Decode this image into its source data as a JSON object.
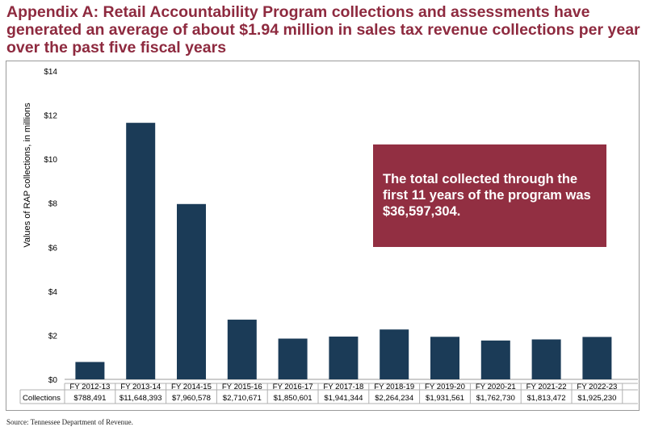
{
  "title": "Appendix A: Retail Accountability Program collections and assessments have generated an average of about $1.94 million in sales tax revenue collections per year over the past five fiscal years",
  "callout": "The total collected through the first 11 years of the program was $36,597,304.",
  "source": "Source: Tennessee Department of Revenue.",
  "colors": {
    "title": "#8e2a3f",
    "bar": "#1b3b57",
    "callout": "#922f42"
  },
  "chart_data": {
    "type": "bar",
    "categories": [
      "FY 2012-13",
      "FY 2013-14",
      "FY 2014-15",
      "FY 2015-16",
      "FY 2016-17",
      "FY 2017-18",
      "FY 2018-19",
      "FY 2019-20",
      "FY 2020-21",
      "FY 2021-22",
      "FY 2022-23"
    ],
    "values": [
      0.788491,
      11.648393,
      7.960578,
      2.710671,
      1.850601,
      1.941344,
      2.264234,
      1.931561,
      1.76273,
      1.813472,
      1.92523
    ],
    "table_row_label": "Collections",
    "table_values": [
      "$788,491",
      "$11,648,393",
      "$7,960,578",
      "$2,710,671",
      "$1,850,601",
      "$1,941,344",
      "$2,264,234",
      "$1,931,561",
      "$1,762,730",
      "$1,813,472",
      "$1,925,230"
    ],
    "ylabel": "Values of RAP collections, in millions",
    "ylim": [
      0,
      14
    ],
    "yticks": [
      0,
      2,
      4,
      6,
      8,
      10,
      12,
      14
    ],
    "ytick_labels": [
      "$0",
      "$2",
      "$4",
      "$6",
      "$8",
      "$10",
      "$12",
      "$14"
    ],
    "grid": false,
    "legend": "none"
  }
}
